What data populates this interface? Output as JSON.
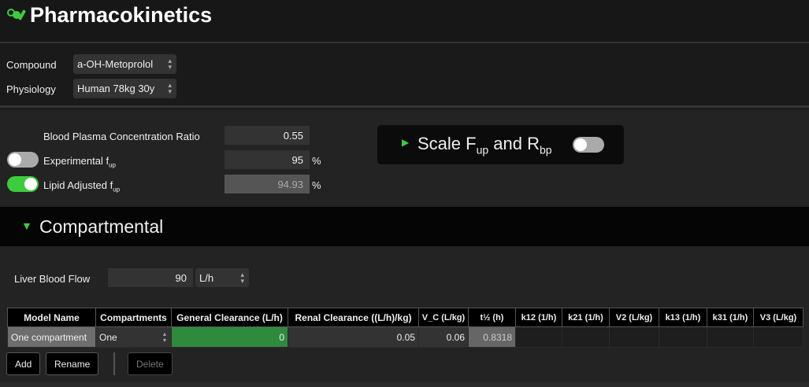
{
  "header": {
    "title": "Pharmacokinetics",
    "icon": "pills-icon"
  },
  "selectors": {
    "compound_label": "Compound",
    "compound_value": "a-OH-Metoprolol",
    "physiology_label": "Physiology",
    "physiology_value": "Human 78kg 30y"
  },
  "params": {
    "bpr_label": "Blood Plasma Concentration Ratio",
    "bpr_value": "0.55",
    "exp_label": "Experimental f",
    "exp_sub": "up",
    "exp_value": "95",
    "exp_unit": "%",
    "exp_toggle": false,
    "lipid_label": "Lipid Adjusted f",
    "lipid_sub": "up",
    "lipid_value": "94.93",
    "lipid_unit": "%",
    "lipid_toggle": true
  },
  "scale": {
    "label_a": "Scale F",
    "sub_a": "up",
    "label_b": " and R",
    "sub_b": "bp",
    "toggle": false
  },
  "compartmental": {
    "title": "Compartmental",
    "liver_label": "Liver Blood Flow",
    "liver_value": "90",
    "liver_unit": "L/h"
  },
  "table": {
    "headers": [
      "Model Name",
      "Compartments",
      "General Clearance (L/h)",
      "Renal Clearance ((L/h)/kg)",
      "V_C (L/kg)",
      "t½ (h)",
      "k12 (1/h)",
      "k21 (1/h)",
      "V2 (L/kg)",
      "k13 (1/h)",
      "k31 (1/h)",
      "V3 (L/kg)"
    ],
    "row": [
      "One compartment",
      "One",
      "0",
      "0.05",
      "0.06",
      "0.8318",
      "",
      "",
      "",
      "",
      "",
      ""
    ]
  },
  "buttons": {
    "add": "Add",
    "rename": "Rename",
    "delete": "Delete"
  },
  "colors": {
    "accent": "#3dcc3d",
    "clearance_cell": "#2e8b3e"
  }
}
